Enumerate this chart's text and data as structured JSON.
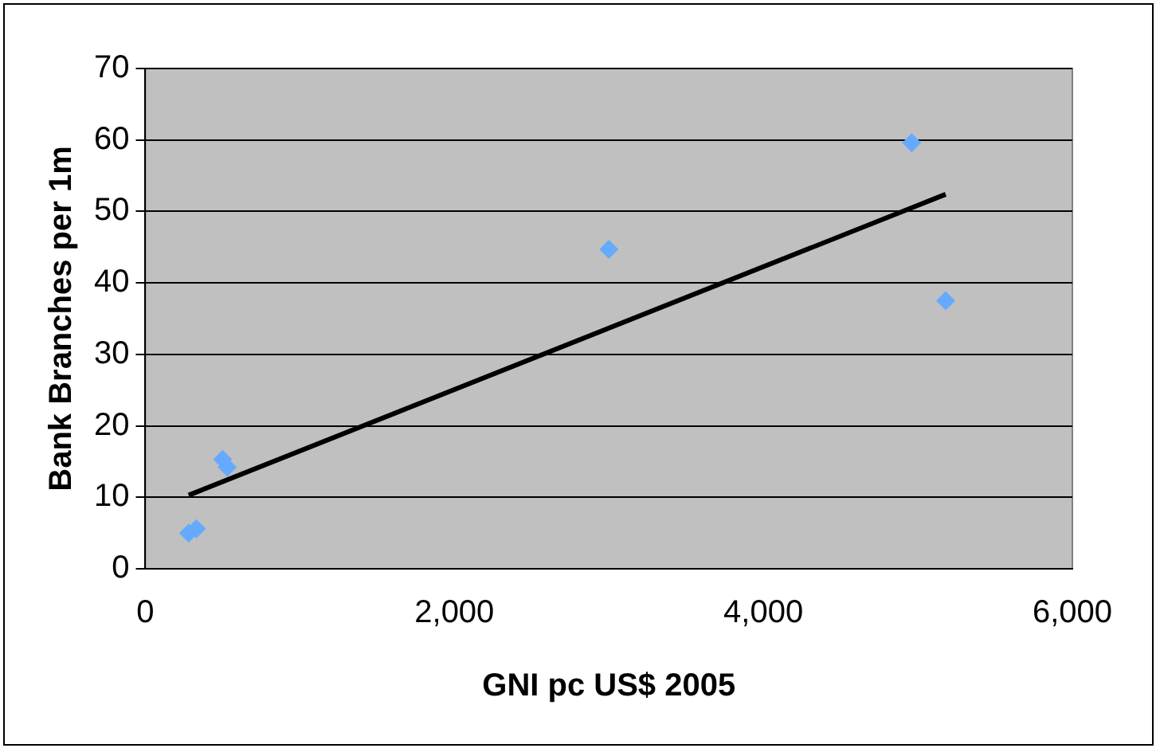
{
  "chart_data": {
    "type": "scatter",
    "xlabel": "GNI pc US$ 2005",
    "ylabel": "Bank Branches per 1m",
    "xlim": [
      0,
      6000
    ],
    "xticks": [
      {
        "value": 0,
        "label": "0"
      },
      {
        "value": 2000,
        "label": "2,000"
      },
      {
        "value": 4000,
        "label": "4,000"
      },
      {
        "value": 6000,
        "label": "6,000"
      }
    ],
    "ylim": [
      0,
      70
    ],
    "yticks": [
      0,
      10,
      20,
      30,
      40,
      50,
      60,
      70
    ],
    "grid": "y",
    "legend": false,
    "series": [
      {
        "color": "#66aaff",
        "marker": "diamond",
        "x": [
          280,
          330,
          500,
          530,
          3000,
          4960,
          5180
        ],
        "values": [
          5,
          5.6,
          15.3,
          14.2,
          44.7,
          59.6,
          37.5
        ]
      },
      {
        "type": "line",
        "color": "#000000",
        "marker": "none",
        "line_style": "solid",
        "x": [
          280,
          5180
        ],
        "values": [
          10.3,
          52.4
        ]
      }
    ]
  }
}
